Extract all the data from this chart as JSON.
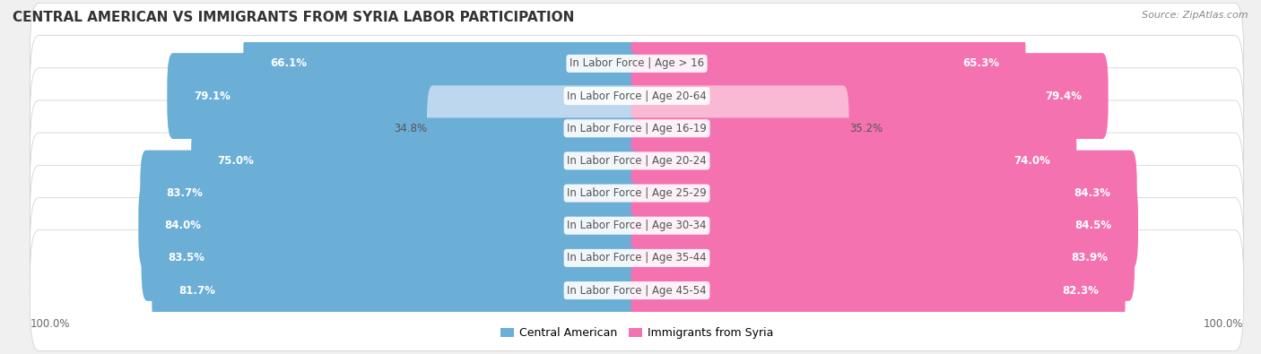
{
  "title": "CENTRAL AMERICAN VS IMMIGRANTS FROM SYRIA LABOR PARTICIPATION",
  "source": "Source: ZipAtlas.com",
  "categories": [
    "In Labor Force | Age > 16",
    "In Labor Force | Age 20-64",
    "In Labor Force | Age 16-19",
    "In Labor Force | Age 20-24",
    "In Labor Force | Age 25-29",
    "In Labor Force | Age 30-34",
    "In Labor Force | Age 35-44",
    "In Labor Force | Age 45-54"
  ],
  "central_american": [
    66.1,
    79.1,
    34.8,
    75.0,
    83.7,
    84.0,
    83.5,
    81.7
  ],
  "syria": [
    65.3,
    79.4,
    35.2,
    74.0,
    84.3,
    84.5,
    83.9,
    82.3
  ],
  "max_val": 100.0,
  "blue_dark": "#6BAED6",
  "blue_light": "#BDD7EE",
  "pink_dark": "#F472B0",
  "pink_light": "#F9B8D4",
  "bg_color": "#F0F0F0",
  "row_bg": "#FFFFFF",
  "row_bg_light": "#FAFAFA",
  "title_color": "#333333",
  "source_color": "#888888",
  "label_color": "#555555",
  "value_color_white": "#FFFFFF",
  "value_color_dark": "#555555",
  "title_fontsize": 11,
  "label_fontsize": 8.5,
  "value_fontsize": 8.5,
  "tick_fontsize": 8.5,
  "legend_fontsize": 9,
  "bar_height": 0.65,
  "threshold": 50
}
